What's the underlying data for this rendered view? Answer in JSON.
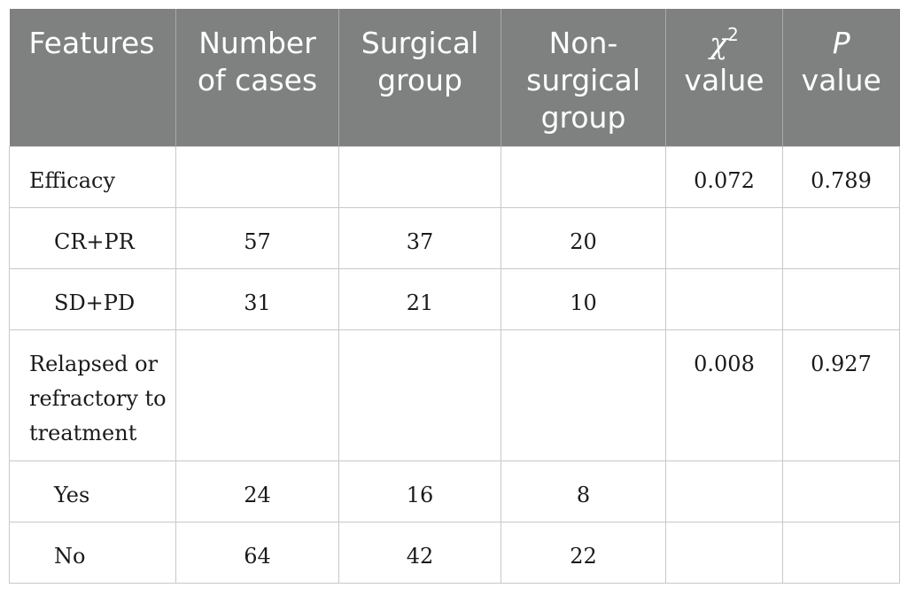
{
  "table": {
    "headers": {
      "features": "Features",
      "number_of_cases": "Number of cases",
      "surgical_group": "Surgical group",
      "non_surgical_group": "Non-surgical group",
      "chi_symbol": "χ",
      "chi_superscript": "2",
      "chi_value_word": "value",
      "p_symbol": "P",
      "p_value_word": "value"
    },
    "rows": [
      {
        "feature": "Efficacy",
        "cases": "",
        "surgical": "",
        "non_surgical": "",
        "chi2": "0.072",
        "p": "0.789"
      },
      {
        "feature": "CR+PR",
        "cases": "57",
        "surgical": "37",
        "non_surgical": "20",
        "chi2": "",
        "p": ""
      },
      {
        "feature": "SD+PD",
        "cases": "31",
        "surgical": "21",
        "non_surgical": "10",
        "chi2": "",
        "p": ""
      },
      {
        "feature": "Relapsed or refractory to treatment",
        "cases": "",
        "surgical": "",
        "non_surgical": "",
        "chi2": "0.008",
        "p": "0.927"
      },
      {
        "feature": "Yes",
        "cases": "24",
        "surgical": "16",
        "non_surgical": "8",
        "chi2": "",
        "p": ""
      },
      {
        "feature": "No",
        "cases": "64",
        "surgical": "42",
        "non_surgical": "22",
        "chi2": "",
        "p": ""
      }
    ]
  },
  "colors": {
    "header_background": "#7f8180",
    "header_text": "#ffffff",
    "grid_line": "#c8c8c8",
    "body_text": "#1a1a1a"
  }
}
